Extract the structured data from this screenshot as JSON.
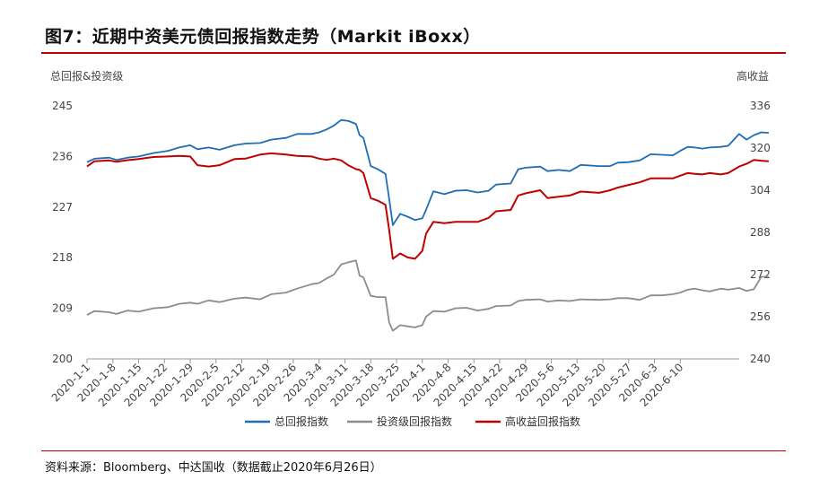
{
  "header": {
    "title": "图7：近期中资美元债回报指数走势（Markit iBoxx）"
  },
  "footer": {
    "source": "资料来源：Bloomberg、中达国收（数据截止2020年6月26日）"
  },
  "chart_data": {
    "type": "line",
    "title": "图7：近期中资美元债回报指数走势（Markit iBoxx）",
    "ylabel": "总回报&投资级",
    "y2label": "高收益",
    "ylim": [
      200,
      245
    ],
    "y2lim": [
      240,
      336
    ],
    "yticks": [
      "200",
      "209",
      "218",
      "227",
      "236",
      "245"
    ],
    "y2ticks": [
      "240",
      "256",
      "272",
      "288",
      "304",
      "320",
      "336"
    ],
    "xlim": [
      "2020-1-1",
      "2020-6-26"
    ],
    "xticks": [
      "2020-1-1",
      "2020-1-8",
      "2020-1-15",
      "2020-1-22",
      "2020-1-29",
      "2020-2-5",
      "2020-2-12",
      "2020-2-19",
      "2020-2-26",
      "2020-3-4",
      "2020-3-11",
      "2020-3-18",
      "2020-3-25",
      "2020-4-1",
      "2020-4-8",
      "2020-4-15",
      "2020-4-22",
      "2020-4-29",
      "2020-5-6",
      "2020-5-13",
      "2020-5-20",
      "2020-5-27",
      "2020-6-3",
      "2020-6-10"
    ],
    "grid": false,
    "legend_position": "bottom",
    "series": [
      {
        "name": "总回报指数",
        "axis": "left",
        "color": "#1f6db5",
        "points": [
          [
            "2020-1-1",
            235.0
          ],
          [
            "2020-1-3",
            235.6
          ],
          [
            "2020-1-7",
            235.8
          ],
          [
            "2020-1-9",
            235.4
          ],
          [
            "2020-1-12",
            235.8
          ],
          [
            "2020-1-15",
            236.0
          ],
          [
            "2020-1-19",
            236.6
          ],
          [
            "2020-1-23",
            237.0
          ],
          [
            "2020-1-26",
            237.6
          ],
          [
            "2020-1-29",
            238.0
          ],
          [
            "2020-1-31",
            237.3
          ],
          [
            "2020-2-3",
            237.6
          ],
          [
            "2020-2-6",
            237.2
          ],
          [
            "2020-2-10",
            238.0
          ],
          [
            "2020-2-13",
            238.3
          ],
          [
            "2020-2-17",
            238.4
          ],
          [
            "2020-2-20",
            239.0
          ],
          [
            "2020-2-24",
            239.3
          ],
          [
            "2020-2-27",
            240.0
          ],
          [
            "2020-3-2",
            240.0
          ],
          [
            "2020-3-4",
            240.3
          ],
          [
            "2020-3-6",
            240.8
          ],
          [
            "2020-3-8",
            241.5
          ],
          [
            "2020-3-10",
            242.5
          ],
          [
            "2020-3-12",
            242.3
          ],
          [
            "2020-3-14",
            241.8
          ],
          [
            "2020-3-15",
            239.8
          ],
          [
            "2020-3-16",
            239.3
          ],
          [
            "2020-3-18",
            234.3
          ],
          [
            "2020-3-20",
            233.7
          ],
          [
            "2020-3-22",
            232.9
          ],
          [
            "2020-3-23",
            228.5
          ],
          [
            "2020-3-24",
            223.8
          ],
          [
            "2020-3-26",
            225.8
          ],
          [
            "2020-3-28",
            225.3
          ],
          [
            "2020-3-30",
            224.7
          ],
          [
            "2020-4-1",
            225.0
          ],
          [
            "2020-4-2",
            226.5
          ],
          [
            "2020-4-4",
            229.8
          ],
          [
            "2020-4-7",
            229.3
          ],
          [
            "2020-4-10",
            229.9
          ],
          [
            "2020-4-13",
            230.0
          ],
          [
            "2020-4-16",
            229.6
          ],
          [
            "2020-4-19",
            229.9
          ],
          [
            "2020-4-21",
            231.0
          ],
          [
            "2020-4-25",
            231.2
          ],
          [
            "2020-4-27",
            233.7
          ],
          [
            "2020-4-29",
            234.0
          ],
          [
            "2020-5-3",
            234.2
          ],
          [
            "2020-5-5",
            233.4
          ],
          [
            "2020-5-8",
            233.6
          ],
          [
            "2020-5-11",
            233.4
          ],
          [
            "2020-5-14",
            234.5
          ],
          [
            "2020-5-19",
            234.3
          ],
          [
            "2020-5-22",
            234.3
          ],
          [
            "2020-5-24",
            234.9
          ],
          [
            "2020-5-27",
            235.0
          ],
          [
            "2020-5-30",
            235.3
          ],
          [
            "2020-6-2",
            236.4
          ],
          [
            "2020-6-5",
            236.3
          ],
          [
            "2020-6-8",
            236.2
          ],
          [
            "2020-6-10",
            237.0
          ],
          [
            "2020-6-12",
            237.7
          ],
          [
            "2020-6-14",
            237.6
          ],
          [
            "2020-6-16",
            237.4
          ],
          [
            "2020-6-18",
            237.6
          ],
          [
            "2020-6-21",
            237.7
          ],
          [
            "2020-6-23",
            237.9
          ],
          [
            "2020-6-26",
            240.0
          ],
          [
            "2020-6-28",
            239.0
          ],
          [
            "2020-6-30",
            239.8
          ],
          [
            "2020-7-2",
            240.3
          ],
          [
            "2020-7-4",
            240.2
          ]
        ]
      },
      {
        "name": "投资级回报指数",
        "axis": "left",
        "color": "#8c8c8c",
        "points": [
          [
            "2020-1-1",
            207.8
          ],
          [
            "2020-1-3",
            208.5
          ],
          [
            "2020-1-7",
            208.3
          ],
          [
            "2020-1-9",
            208.0
          ],
          [
            "2020-1-12",
            208.6
          ],
          [
            "2020-1-15",
            208.4
          ],
          [
            "2020-1-19",
            209.0
          ],
          [
            "2020-1-23",
            209.2
          ],
          [
            "2020-1-26",
            209.8
          ],
          [
            "2020-1-29",
            210.0
          ],
          [
            "2020-1-31",
            209.8
          ],
          [
            "2020-2-3",
            210.4
          ],
          [
            "2020-2-6",
            210.1
          ],
          [
            "2020-2-10",
            210.7
          ],
          [
            "2020-2-13",
            210.9
          ],
          [
            "2020-2-17",
            210.6
          ],
          [
            "2020-2-20",
            211.5
          ],
          [
            "2020-2-24",
            211.8
          ],
          [
            "2020-2-27",
            212.5
          ],
          [
            "2020-3-2",
            213.3
          ],
          [
            "2020-3-4",
            213.5
          ],
          [
            "2020-3-6",
            214.3
          ],
          [
            "2020-3-8",
            215.0
          ],
          [
            "2020-3-10",
            216.8
          ],
          [
            "2020-3-12",
            217.2
          ],
          [
            "2020-3-14",
            217.5
          ],
          [
            "2020-3-15",
            214.8
          ],
          [
            "2020-3-16",
            214.5
          ],
          [
            "2020-3-18",
            211.2
          ],
          [
            "2020-3-20",
            211.0
          ],
          [
            "2020-3-22",
            211.0
          ],
          [
            "2020-3-23",
            206.5
          ],
          [
            "2020-3-24",
            205.0
          ],
          [
            "2020-3-26",
            206.0
          ],
          [
            "2020-3-28",
            205.8
          ],
          [
            "2020-3-30",
            205.6
          ],
          [
            "2020-4-1",
            206.0
          ],
          [
            "2020-4-2",
            207.5
          ],
          [
            "2020-4-4",
            208.5
          ],
          [
            "2020-4-7",
            208.4
          ],
          [
            "2020-4-10",
            209.0
          ],
          [
            "2020-4-13",
            209.1
          ],
          [
            "2020-4-16",
            208.6
          ],
          [
            "2020-4-19",
            208.9
          ],
          [
            "2020-4-21",
            209.4
          ],
          [
            "2020-4-25",
            209.5
          ],
          [
            "2020-4-27",
            210.3
          ],
          [
            "2020-4-29",
            210.5
          ],
          [
            "2020-5-3",
            210.6
          ],
          [
            "2020-5-5",
            210.2
          ],
          [
            "2020-5-8",
            210.4
          ],
          [
            "2020-5-11",
            210.3
          ],
          [
            "2020-5-14",
            210.6
          ],
          [
            "2020-5-19",
            210.5
          ],
          [
            "2020-5-22",
            210.6
          ],
          [
            "2020-5-24",
            210.8
          ],
          [
            "2020-5-27",
            210.8
          ],
          [
            "2020-5-30",
            210.5
          ],
          [
            "2020-6-2",
            211.3
          ],
          [
            "2020-6-5",
            211.3
          ],
          [
            "2020-6-8",
            211.5
          ],
          [
            "2020-6-10",
            211.8
          ],
          [
            "2020-6-12",
            212.3
          ],
          [
            "2020-6-14",
            212.5
          ],
          [
            "2020-6-16",
            212.2
          ],
          [
            "2020-6-18",
            212.0
          ],
          [
            "2020-6-21",
            212.5
          ],
          [
            "2020-6-23",
            212.3
          ],
          [
            "2020-6-26",
            212.6
          ],
          [
            "2020-6-28",
            212.1
          ],
          [
            "2020-6-30",
            212.4
          ],
          [
            "2020-7-2",
            214.6
          ],
          [
            "2020-7-4",
            214.6
          ]
        ]
      },
      {
        "name": "高收益回报指数",
        "axis": "right",
        "color": "#c00000",
        "points": [
          [
            "2020-1-1",
            313.0
          ],
          [
            "2020-1-3",
            315.0
          ],
          [
            "2020-1-7",
            315.3
          ],
          [
            "2020-1-9",
            314.8
          ],
          [
            "2020-1-12",
            315.4
          ],
          [
            "2020-1-15",
            315.8
          ],
          [
            "2020-1-19",
            316.6
          ],
          [
            "2020-1-23",
            316.8
          ],
          [
            "2020-1-26",
            317.0
          ],
          [
            "2020-1-29",
            316.8
          ],
          [
            "2020-1-31",
            313.5
          ],
          [
            "2020-2-3",
            313.0
          ],
          [
            "2020-2-6",
            313.5
          ],
          [
            "2020-2-10",
            315.8
          ],
          [
            "2020-2-13",
            316.0
          ],
          [
            "2020-2-17",
            317.5
          ],
          [
            "2020-2-20",
            318.0
          ],
          [
            "2020-2-24",
            317.5
          ],
          [
            "2020-2-27",
            317.0
          ],
          [
            "2020-3-2",
            316.8
          ],
          [
            "2020-3-4",
            316.0
          ],
          [
            "2020-3-6",
            315.5
          ],
          [
            "2020-3-8",
            316.0
          ],
          [
            "2020-3-10",
            315.3
          ],
          [
            "2020-3-12",
            313.4
          ],
          [
            "2020-3-14",
            312.0
          ],
          [
            "2020-3-15",
            311.7
          ],
          [
            "2020-3-16",
            310.5
          ],
          [
            "2020-3-18",
            301.0
          ],
          [
            "2020-3-20",
            300.0
          ],
          [
            "2020-3-22",
            298.5
          ],
          [
            "2020-3-23",
            289.0
          ],
          [
            "2020-3-24",
            278.0
          ],
          [
            "2020-3-26",
            280.0
          ],
          [
            "2020-3-28",
            278.5
          ],
          [
            "2020-3-30",
            278.0
          ],
          [
            "2020-4-1",
            281.0
          ],
          [
            "2020-4-2",
            287.5
          ],
          [
            "2020-4-4",
            292.0
          ],
          [
            "2020-4-7",
            291.5
          ],
          [
            "2020-4-10",
            292.0
          ],
          [
            "2020-4-13",
            292.0
          ],
          [
            "2020-4-16",
            292.0
          ],
          [
            "2020-4-19",
            293.5
          ],
          [
            "2020-4-21",
            296.0
          ],
          [
            "2020-4-25",
            296.5
          ],
          [
            "2020-4-27",
            302.0
          ],
          [
            "2020-4-29",
            302.8
          ],
          [
            "2020-5-3",
            304.0
          ],
          [
            "2020-5-5",
            301.0
          ],
          [
            "2020-5-8",
            301.5
          ],
          [
            "2020-5-11",
            302.0
          ],
          [
            "2020-5-14",
            303.5
          ],
          [
            "2020-5-19",
            303.0
          ],
          [
            "2020-5-22",
            304.0
          ],
          [
            "2020-5-24",
            305.0
          ],
          [
            "2020-5-27",
            306.0
          ],
          [
            "2020-5-30",
            307.0
          ],
          [
            "2020-6-2",
            308.5
          ],
          [
            "2020-6-5",
            308.5
          ],
          [
            "2020-6-8",
            308.5
          ],
          [
            "2020-6-10",
            309.5
          ],
          [
            "2020-6-12",
            310.5
          ],
          [
            "2020-6-14",
            310.2
          ],
          [
            "2020-6-16",
            310.0
          ],
          [
            "2020-6-18",
            310.5
          ],
          [
            "2020-6-21",
            310.0
          ],
          [
            "2020-6-23",
            310.5
          ],
          [
            "2020-6-26",
            313.0
          ],
          [
            "2020-6-28",
            314.0
          ],
          [
            "2020-6-30",
            315.5
          ],
          [
            "2020-7-2",
            315.2
          ],
          [
            "2020-7-4",
            315.0
          ]
        ]
      }
    ]
  }
}
